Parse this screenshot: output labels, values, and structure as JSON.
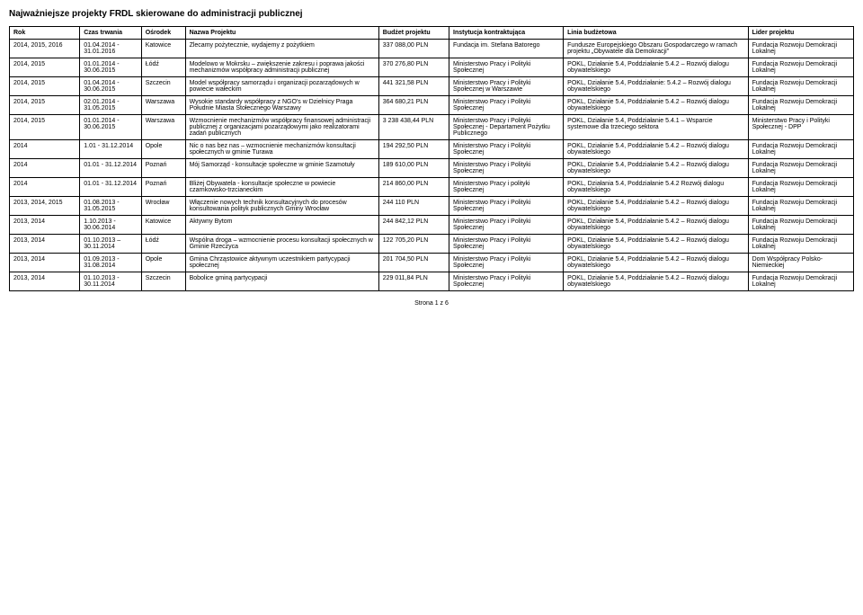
{
  "title": "Najważniejsze projekty FRDL skierowane do administracji publicznej",
  "columns": [
    "Rok",
    "Czas trwania",
    "Ośrodek",
    "Nazwa Projektu",
    "Budżet projektu",
    "Instytucja kontraktująca",
    "Linia budżetowa",
    "Lider projektu"
  ],
  "rows": [
    {
      "rok": "2014, 2015, 2016",
      "czas": "01.04.2014 - 31.01.2016",
      "osrodek": "Katowice",
      "nazwa": "Zlecamy pożytecznie, wydajemy z pożytkiem",
      "budzet": "337 088,00 PLN",
      "instytucja": "Fundacja im. Stefana Batorego",
      "linia": "Fundusze Europejskiego Obszaru Gospodarczego w ramach projektu „Obywatele dla Demokracji\"",
      "lider": "Fundacja Rozwoju Demokracji Lokalnej"
    },
    {
      "rok": "2014, 2015",
      "czas": "01.01.2014 - 30.06.2015",
      "osrodek": "Łódź",
      "nazwa": "Modelowo w Mokrsku – zwiększenie zakresu i poprawa jakości mechanizmów współpracy administracji publicznej",
      "budzet": "370 276,80 PLN",
      "instytucja": "Ministerstwo Pracy i Polityki Społecznej",
      "linia": "POKL, Działanie 5.4, Poddziałanie 5.4.2 – Rozwój dialogu obywatelskiego",
      "lider": "Fundacja Rozwoju Demokracji Lokalnej"
    },
    {
      "rok": "2014, 2015",
      "czas": "01.04.2014 - 30.06.2015",
      "osrodek": "Szczecin",
      "nazwa": "Model współpracy samorządu i organizacji pozarządowych w powiecie wałeckim",
      "budzet": "441 321,58 PLN",
      "instytucja": "Ministerstwo Pracy i Polityki Społecznej w Warszawie",
      "linia": "POKL, Działanie 5.4, Poddziałanie: 5.4.2 – Rozwój dialogu obywatelskiego",
      "lider": "Fundacja Rozwoju Demokracji Lokalnej"
    },
    {
      "rok": "2014, 2015",
      "czas": "02.01.2014 - 31.05.2015",
      "osrodek": "Warszawa",
      "nazwa": "Wysokie standardy współpracy z NGO's w Dzielnicy Praga Południe Miasta Stołecznego Warszawy",
      "budzet": "364 680,21 PLN",
      "instytucja": "Ministerstwo Pracy i Polityki Społecznej",
      "linia": "POKL, Działanie 5.4, Poddziałanie 5.4.2 – Rozwój dialogu obywatelskiego",
      "lider": "Fundacja Rozwoju Demokracji Lokalnej"
    },
    {
      "rok": "2014, 2015",
      "czas": "01.01.2014 - 30.06.2015",
      "osrodek": "Warszawa",
      "nazwa": "Wzmocnienie mechanizmów współpracy finansowej administracji publicznej z organizacjami pozarządowymi jako realizatorami zadań publicznych",
      "budzet": "3 238 438,44 PLN",
      "instytucja": "Ministerstwo Pracy i Polityki Społecznej - Departament Pożytku Publicznego",
      "linia": "POKL, Działanie 5.4, Poddziałanie 5.4.1 – Wsparcie systemowe dla trzeciego sektora",
      "lider": "Ministerstwo Pracy i Polityki Społecznej - DPP"
    },
    {
      "rok": "2014",
      "czas": "1.01 - 31.12.2014",
      "osrodek": "Opole",
      "nazwa": "Nic o nas bez nas – wzmocnienie mechanizmów konsultacji społecznych w gminie Turawa",
      "budzet": "194 292,50 PLN",
      "instytucja": "Ministerstwo Pracy i Polityki Społecznej",
      "linia": "POKL, Działanie 5.4, Poddziałanie 5.4.2 – Rozwój dialogu obywatelskiego",
      "lider": "Fundacja Rozwoju Demokracji Lokalnej"
    },
    {
      "rok": "2014",
      "czas": "01.01 - 31.12.2014",
      "osrodek": "Poznań",
      "nazwa": "Mój Samorząd - konsultacje społeczne w gminie Szamotuły",
      "budzet": "189 610,00 PLN",
      "instytucja": "Ministerstwo Pracy i Polityki Społecznej",
      "linia": "POKL, Działanie 5.4, Poddziałanie 5.4.2 – Rozwój dialogu obywatelskiego",
      "lider": "Fundacja Rozwoju Demokracji Lokalnej"
    },
    {
      "rok": "2014",
      "czas": "01.01 - 31.12.2014",
      "osrodek": "Poznań",
      "nazwa": "Bliżej Obywatela - konsultacje społeczne w powiecie czarnkowsko-trzcianeckim",
      "budzet": "214 860,00 PLN",
      "instytucja": "Ministerstwo Pracy i polityki Społecznej",
      "linia": "POKL, Działania 5.4, Poddziałanie 5.4.2 Rozwój dialogu obywatelskiego",
      "lider": "Fundacja Rozwoju Demokracji Lokalnej"
    },
    {
      "rok": "2013, 2014, 2015",
      "czas": "01.08.2013 - 31.05.2015",
      "osrodek": "Wrocław",
      "nazwa": "Włączenie nowych technik konsultacyjnych do procesów konsultowania polityk publicznych Gminy Wrocław",
      "budzet": "244 110 PLN",
      "instytucja": "Ministerstwo Pracy i Polityki Społecznej",
      "linia": "POKL, Działanie 5.4, Poddziałanie 5.4.2 – Rozwój dialogu obywatelskiego",
      "lider": "Fundacja Rozwoju Demokracji Lokalnej"
    },
    {
      "rok": "2013, 2014",
      "czas": "1.10.2013 - 30.06.2014",
      "osrodek": "Katowice",
      "nazwa": "Aktywny Bytom",
      "budzet": "244 842,12 PLN",
      "instytucja": "Ministerstwo Pracy i Polityki Społecznej",
      "linia": "POKL, Działanie 5.4, Poddziałanie 5.4.2 – Rozwój dialogu obywatelskiego",
      "lider": "Fundacja Rozwoju Demokracji Lokalnej"
    },
    {
      "rok": "2013, 2014",
      "czas": "01.10.2013 – 30.11.2014",
      "osrodek": "Łódź",
      "nazwa": "Wspólna droga – wzmocnienie procesu konsultacji społecznych w Gminie Rzeczyca",
      "budzet": "122 705,20 PLN",
      "instytucja": "Ministerstwo Pracy i Polityki Społecznej",
      "linia": "POKL, Działanie 5.4, Poddziałanie 5.4.2 – Rozwój dialogu obywatelskiego",
      "lider": "Fundacja Rozwoju Demokracji Lokalnej"
    },
    {
      "rok": "2013, 2014",
      "czas": "01.09.2013 - 31.08.2014",
      "osrodek": "Opole",
      "nazwa": "Gmina Chrząstowice aktywnym uczestnikiem partycypacji społecznej",
      "budzet": "201 704,50 PLN",
      "instytucja": "Ministerstwo Pracy i Polityki Społecznej",
      "linia": "POKL, Działanie 5.4, Poddziałanie 5.4.2 – Rozwój dialogu obywatelskiego",
      "lider": "Dom Współpracy Polsko-Niemieckiej"
    },
    {
      "rok": "2013, 2014",
      "czas": "01.10.2013 - 30.11.2014",
      "osrodek": "Szczecin",
      "nazwa": "Bobolice gminą partycypacji",
      "budzet": "229 011,84 PLN",
      "instytucja": "Ministerstwo Pracy i Polityki Społecznej",
      "linia": "POKL, Działanie 5.4, Poddziałanie 5.4.2 – Rozwój dialogu obywatelskiego",
      "lider": "Fundacja Rozwoju Demokracji Lokalnej"
    }
  ],
  "footer": "Strona 1 z 6"
}
